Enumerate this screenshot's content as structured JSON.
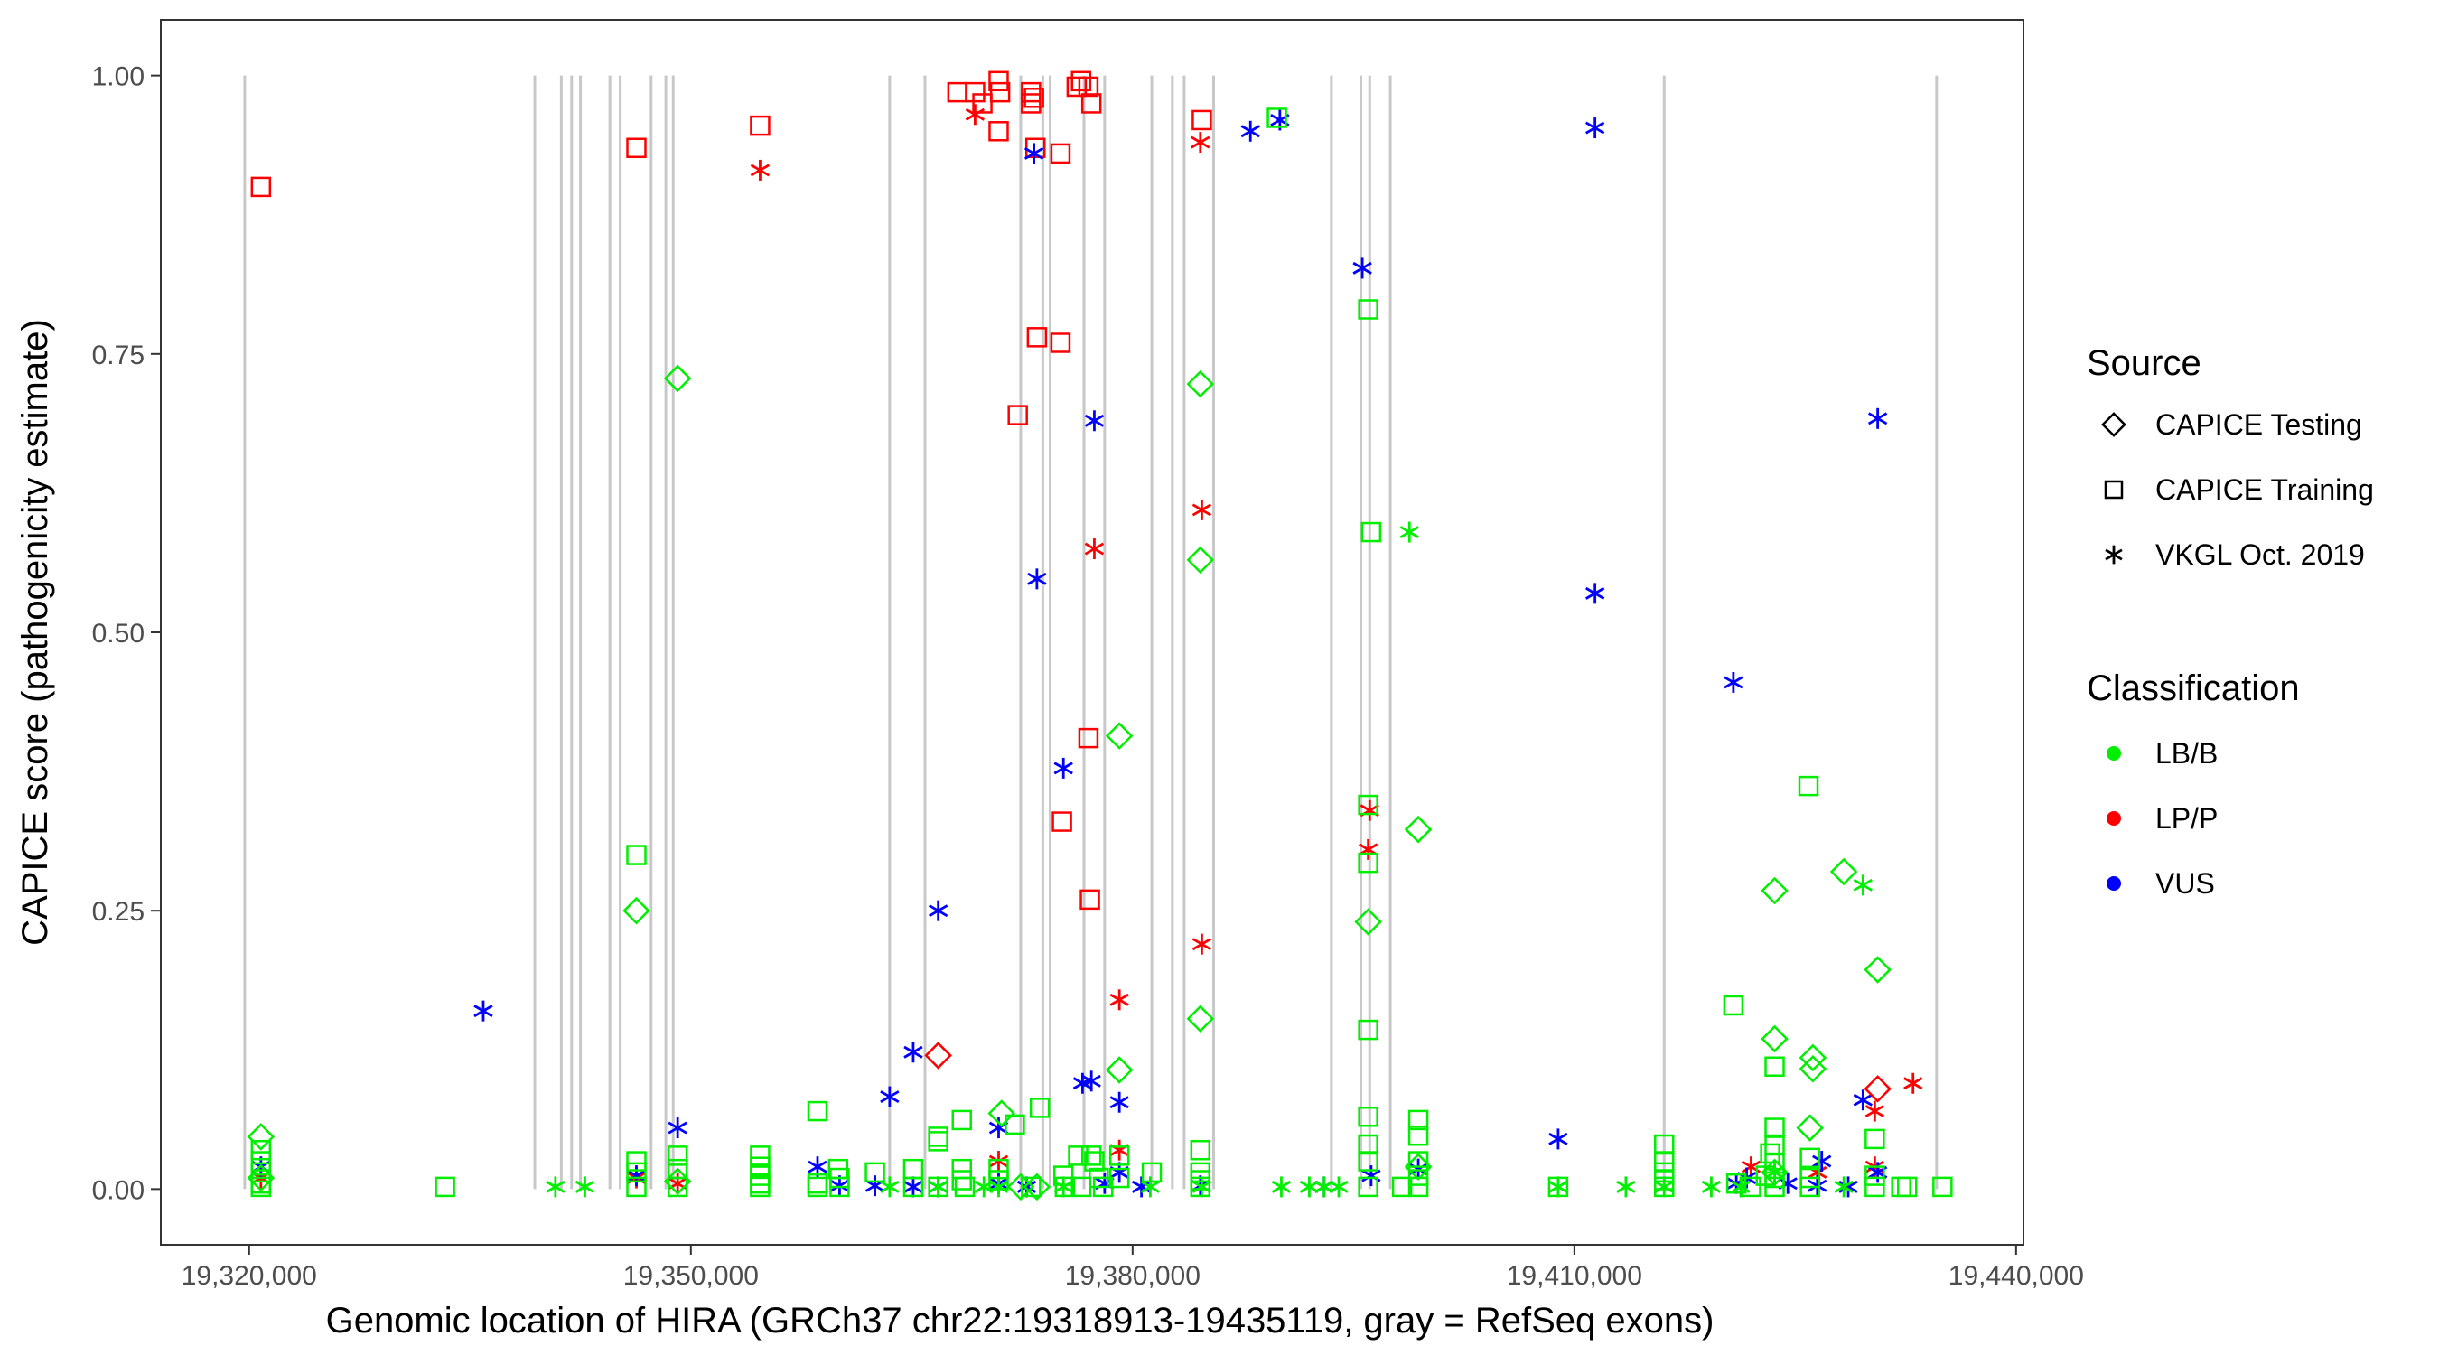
{
  "chart_data": {
    "type": "scatter",
    "title": "",
    "xlabel": "Genomic location of HIRA (GRCh37 chr22:19318913-19435119, gray = RefSeq exons)",
    "ylabel": "CAPICE score (pathogenicity estimate)",
    "xlim": [
      19314000,
      19440500
    ],
    "ylim": [
      -0.05,
      1.05
    ],
    "x_ticks": [
      19320000,
      19350000,
      19380000,
      19410000,
      19440000
    ],
    "x_tick_labels": [
      "19,320,000",
      "19,350,000",
      "19,380,000",
      "19,410,000",
      "19,440,000"
    ],
    "y_ticks": [
      0,
      0.25,
      0.5,
      0.75,
      1
    ],
    "y_tick_labels": [
      "0.00",
      "0.25",
      "0.50",
      "0.75",
      "1.00"
    ],
    "grid": false,
    "exon_positions": [
      19319700,
      19339400,
      19341200,
      19341900,
      19342500,
      19344500,
      19345200,
      19347300,
      19348300,
      19348800,
      19363500,
      19365900,
      19372400,
      19373900,
      19374400,
      19376700,
      19378100,
      19381300,
      19382700,
      19383500,
      19385500,
      19393500,
      19395500,
      19396100,
      19397500,
      19416100,
      19434600
    ],
    "legend": {
      "position": "right",
      "source_title": "Source",
      "source_items": [
        {
          "label": "CAPICE Testing",
          "shape": "diamond"
        },
        {
          "label": "CAPICE Training",
          "shape": "square"
        },
        {
          "label": "VKGL Oct. 2019",
          "shape": "asterisk"
        }
      ],
      "class_title": "Classification",
      "class_items": [
        {
          "label": "LB/B",
          "color": "#00ee00"
        },
        {
          "label": "LP/P",
          "color": "#ff0000"
        },
        {
          "label": "VUS",
          "color": "#0000ff"
        }
      ]
    },
    "series": [
      {
        "name": "CAPICE Training LP/P",
        "shape": "square",
        "color": "#ff0000",
        "points": [
          [
            19320800,
            0.9
          ],
          [
            19346300,
            0.935
          ],
          [
            19354700,
            0.955
          ],
          [
            19368100,
            0.985
          ],
          [
            19369300,
            0.985
          ],
          [
            19369800,
            0.975
          ],
          [
            19370900,
            0.995
          ],
          [
            19371000,
            0.985
          ],
          [
            19370900,
            0.95
          ],
          [
            19373100,
            0.985
          ],
          [
            19373100,
            0.975
          ],
          [
            19373300,
            0.98
          ],
          [
            19373400,
            0.935
          ],
          [
            19373500,
            0.765
          ],
          [
            19375100,
            0.93
          ],
          [
            19375100,
            0.76
          ],
          [
            19372200,
            0.695
          ],
          [
            19375200,
            0.33
          ],
          [
            19377000,
            0.405
          ],
          [
            19377100,
            0.26
          ],
          [
            19376200,
            0.99
          ],
          [
            19376500,
            0.995
          ],
          [
            19377000,
            0.99
          ],
          [
            19377200,
            0.975
          ],
          [
            19384700,
            0.96
          ]
        ]
      },
      {
        "name": "VKGL Oct. 2019 LP/P",
        "shape": "asterisk",
        "color": "#ff0000",
        "points": [
          [
            19354700,
            0.915
          ],
          [
            19369300,
            0.965
          ],
          [
            19377400,
            0.575
          ],
          [
            19379100,
            0.17
          ],
          [
            19384600,
            0.94
          ],
          [
            19384700,
            0.61
          ],
          [
            19384700,
            0.22
          ],
          [
            19396100,
            0.34
          ],
          [
            19396000,
            0.305
          ],
          [
            19430400,
            0.07
          ],
          [
            19433000,
            0.095
          ],
          [
            19320800,
            0.01
          ],
          [
            19346300,
            0.01
          ],
          [
            19349100,
            0.005
          ],
          [
            19370900,
            0.025
          ],
          [
            19379100,
            0.035
          ],
          [
            19426500,
            0.015
          ],
          [
            19430400,
            0.02
          ],
          [
            19422000,
            0.02
          ]
        ]
      },
      {
        "name": "VKGL Oct. 2019 VUS",
        "shape": "asterisk",
        "color": "#0000ff",
        "points": [
          [
            19320800,
            0.02
          ],
          [
            19335900,
            0.16
          ],
          [
            19346300,
            0.012
          ],
          [
            19349100,
            0.055
          ],
          [
            19358600,
            0.02
          ],
          [
            19360100,
            0.003
          ],
          [
            19362500,
            0.003
          ],
          [
            19363500,
            0.083
          ],
          [
            19365100,
            0.123
          ],
          [
            19365100,
            0.002
          ],
          [
            19366800,
            0.002
          ],
          [
            19366800,
            0.25
          ],
          [
            19370900,
            0.055
          ],
          [
            19370900,
            0.005
          ],
          [
            19372800,
            0.002
          ],
          [
            19373300,
            0.93
          ],
          [
            19373500,
            0.548
          ],
          [
            19375300,
            0.378
          ],
          [
            19376600,
            0.095
          ],
          [
            19377200,
            0.097
          ],
          [
            19377400,
            0.69
          ],
          [
            19378100,
            0.005
          ],
          [
            19379100,
            0.078
          ],
          [
            19379100,
            0.015
          ],
          [
            19380600,
            0.002
          ],
          [
            19384600,
            0.003
          ],
          [
            19388000,
            0.95
          ],
          [
            19390000,
            0.96
          ],
          [
            19393000,
            0.002
          ],
          [
            19395600,
            0.827
          ],
          [
            19396200,
            0.012
          ],
          [
            19399400,
            0.018
          ],
          [
            19408900,
            0.045
          ],
          [
            19411400,
            0.953
          ],
          [
            19411400,
            0.535
          ],
          [
            19420800,
            0.455
          ],
          [
            19421000,
            0.005
          ],
          [
            19421700,
            0.01
          ],
          [
            19424500,
            0.005
          ],
          [
            19426500,
            0.003
          ],
          [
            19426800,
            0.025
          ],
          [
            19428600,
            0.002
          ],
          [
            19429600,
            0.08
          ],
          [
            19430600,
            0.015
          ],
          [
            19430600,
            0.692
          ]
        ]
      },
      {
        "name": "VKGL Oct. 2019 LB/B",
        "shape": "asterisk",
        "color": "#00ee00",
        "points": [
          [
            19340800,
            0.002
          ],
          [
            19342800,
            0.002
          ],
          [
            19363500,
            0.002
          ],
          [
            19366800,
            0.002
          ],
          [
            19369900,
            0.002
          ],
          [
            19370900,
            0.002
          ],
          [
            19375300,
            0.002
          ],
          [
            19381200,
            0.002
          ],
          [
            19384700,
            0.002
          ],
          [
            19390100,
            0.002
          ],
          [
            19392000,
            0.002
          ],
          [
            19393000,
            0.002
          ],
          [
            19394000,
            0.002
          ],
          [
            19398800,
            0.59
          ],
          [
            19408900,
            0.002
          ],
          [
            19413500,
            0.002
          ],
          [
            19416100,
            0.002
          ],
          [
            19419300,
            0.002
          ],
          [
            19421300,
            0.002
          ],
          [
            19423600,
            0.015
          ],
          [
            19428300,
            0.002
          ],
          [
            19429600,
            0.273
          ]
        ]
      },
      {
        "name": "CAPICE Testing LB/B",
        "shape": "diamond",
        "color": "#00ee00",
        "points": [
          [
            19320800,
            0.047
          ],
          [
            19320800,
            0.01
          ],
          [
            19346300,
            0.25
          ],
          [
            19349100,
            0.728
          ],
          [
            19349100,
            0.007
          ],
          [
            19371100,
            0.068
          ],
          [
            19379100,
            0.407
          ],
          [
            19379100,
            0.107
          ],
          [
            19384600,
            0.723
          ],
          [
            19384600,
            0.565
          ],
          [
            19384600,
            0.153
          ],
          [
            19396000,
            0.24
          ],
          [
            19399400,
            0.323
          ],
          [
            19399400,
            0.02
          ],
          [
            19423600,
            0.268
          ],
          [
            19423600,
            0.135
          ],
          [
            19423600,
            0.015
          ],
          [
            19426200,
            0.118
          ],
          [
            19426200,
            0.108
          ],
          [
            19426000,
            0.055
          ],
          [
            19428300,
            0.285
          ],
          [
            19430600,
            0.197
          ],
          [
            19372400,
            0.002
          ],
          [
            19373500,
            0.002
          ]
        ]
      },
      {
        "name": "CAPICE Testing LP/P",
        "shape": "diamond",
        "color": "#ff0000",
        "points": [
          [
            19366800,
            0.12
          ],
          [
            19430600,
            0.09
          ]
        ]
      },
      {
        "name": "CAPICE Training LB/B",
        "shape": "square",
        "color": "#00ee00",
        "points": [
          [
            19320800,
            0.035
          ],
          [
            19320800,
            0.025
          ],
          [
            19320800,
            0.015
          ],
          [
            19320800,
            0.005
          ],
          [
            19320800,
            0.002
          ],
          [
            19333300,
            0.002
          ],
          [
            19346300,
            0.3
          ],
          [
            19346300,
            0.025
          ],
          [
            19346300,
            0.015
          ],
          [
            19346300,
            0.002
          ],
          [
            19349100,
            0.03
          ],
          [
            19349100,
            0.018
          ],
          [
            19349100,
            0.002
          ],
          [
            19354700,
            0.03
          ],
          [
            19354700,
            0.02
          ],
          [
            19354700,
            0.012
          ],
          [
            19354700,
            0.005
          ],
          [
            19354700,
            0.002
          ],
          [
            19358600,
            0.07
          ],
          [
            19358600,
            0.005
          ],
          [
            19358600,
            0.002
          ],
          [
            19360000,
            0.018
          ],
          [
            19360100,
            0.01
          ],
          [
            19360100,
            0.002
          ],
          [
            19362500,
            0.015
          ],
          [
            19365100,
            0.018
          ],
          [
            19365100,
            0.002
          ],
          [
            19366800,
            0.047
          ],
          [
            19366800,
            0.043
          ],
          [
            19366800,
            0.002
          ],
          [
            19368400,
            0.062
          ],
          [
            19368400,
            0.018
          ],
          [
            19368400,
            0.008
          ],
          [
            19368600,
            0.002
          ],
          [
            19370900,
            0.018
          ],
          [
            19370900,
            0.008
          ],
          [
            19372000,
            0.058
          ],
          [
            19373100,
            0.002
          ],
          [
            19373700,
            0.073
          ],
          [
            19375300,
            0.012
          ],
          [
            19375400,
            0.002
          ],
          [
            19376300,
            0.03
          ],
          [
            19376500,
            0.002
          ],
          [
            19377200,
            0.03
          ],
          [
            19377400,
            0.025
          ],
          [
            19377700,
            0.01
          ],
          [
            19378000,
            0.002
          ],
          [
            19379100,
            0.03
          ],
          [
            19379100,
            0.01
          ],
          [
            19381300,
            0.015
          ],
          [
            19384600,
            0.035
          ],
          [
            19384600,
            0.015
          ],
          [
            19384600,
            0.008
          ],
          [
            19384600,
            0.002
          ],
          [
            19389800,
            0.962
          ],
          [
            19396000,
            0.79
          ],
          [
            19396200,
            0.59
          ],
          [
            19396000,
            0.345
          ],
          [
            19396000,
            0.293
          ],
          [
            19396000,
            0.143
          ],
          [
            19396000,
            0.065
          ],
          [
            19396000,
            0.04
          ],
          [
            19396000,
            0.025
          ],
          [
            19396000,
            0.002
          ],
          [
            19398300,
            0.002
          ],
          [
            19399400,
            0.062
          ],
          [
            19399400,
            0.048
          ],
          [
            19399400,
            0.025
          ],
          [
            19399400,
            0.012
          ],
          [
            19399400,
            0.002
          ],
          [
            19408900,
            0.002
          ],
          [
            19416100,
            0.04
          ],
          [
            19416100,
            0.025
          ],
          [
            19416100,
            0.015
          ],
          [
            19416100,
            0.008
          ],
          [
            19416100,
            0.002
          ],
          [
            19420800,
            0.165
          ],
          [
            19421000,
            0.005
          ],
          [
            19422000,
            0.002
          ],
          [
            19423000,
            0.012
          ],
          [
            19423300,
            0.032
          ],
          [
            19423600,
            0.11
          ],
          [
            19423600,
            0.055
          ],
          [
            19423600,
            0.04
          ],
          [
            19423600,
            0.023
          ],
          [
            19423600,
            0.01
          ],
          [
            19423600,
            0.002
          ],
          [
            19425900,
            0.362
          ],
          [
            19426000,
            0.028
          ],
          [
            19426000,
            0.01
          ],
          [
            19426000,
            0.002
          ],
          [
            19430400,
            0.045
          ],
          [
            19430400,
            0.012
          ],
          [
            19430400,
            0.002
          ],
          [
            19432200,
            0.002
          ],
          [
            19432600,
            0.002
          ],
          [
            19435000,
            0.002
          ]
        ]
      }
    ]
  }
}
